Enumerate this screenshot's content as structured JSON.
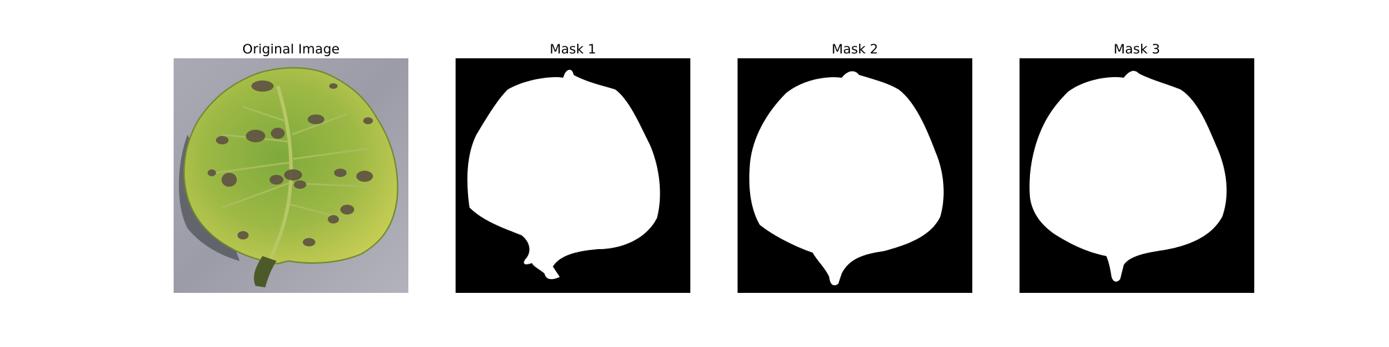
{
  "figure": {
    "panels": [
      {
        "title": "Original Image",
        "kind": "photo",
        "subject": "leaf"
      },
      {
        "title": "Mask 1",
        "kind": "mask"
      },
      {
        "title": "Mask 2",
        "kind": "mask"
      },
      {
        "title": "Mask 3",
        "kind": "mask"
      }
    ]
  },
  "colors": {
    "background": "#ffffff",
    "mask_background": "#000000",
    "mask_foreground": "#ffffff",
    "photo_backdrop": "#9c9ca8",
    "leaf_green": "#7fa83c",
    "leaf_yellow": "#c8cf52",
    "lesion": "#5e5242",
    "shadow": "#55575e"
  }
}
